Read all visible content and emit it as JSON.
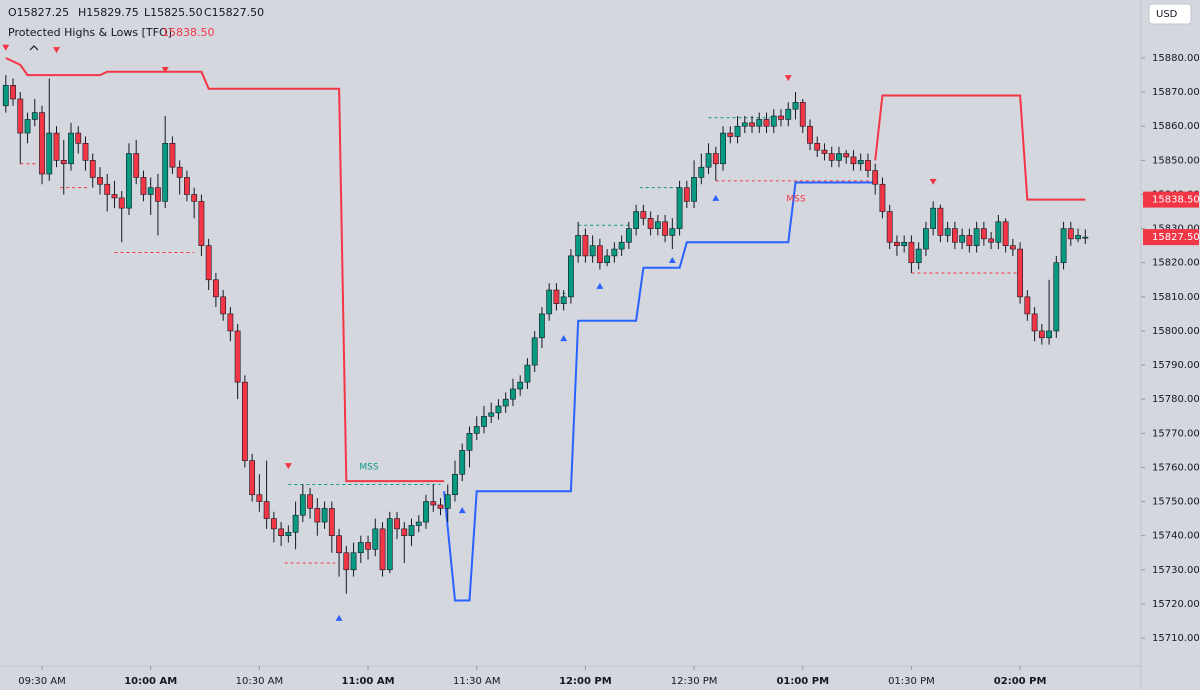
{
  "header": {
    "ohlc": [
      "O15827.25",
      "H15829.75",
      "L15825.50",
      "C15827.50"
    ],
    "indicator": "Protected Highs & Lows [TFO]",
    "indicator_value": "15838.50",
    "currency": "USD"
  },
  "chart_data": {
    "type": "candlestick",
    "up_color": "#089981",
    "down_color": "#f23645",
    "xlim": [
      558.4,
      873.1
    ],
    "ylim": [
      15702.1,
      15897
    ],
    "xticks": [
      {
        "value": 570,
        "label": "09:30 AM"
      },
      {
        "value": 600,
        "label": "10:00 AM"
      },
      {
        "value": 630,
        "label": "10:30 AM"
      },
      {
        "value": 660,
        "label": "11:00 AM"
      },
      {
        "value": 690,
        "label": "11:30 AM"
      },
      {
        "value": 720,
        "label": "12:00 PM"
      },
      {
        "value": 750,
        "label": "12:30 PM"
      },
      {
        "value": 780,
        "label": "01:00 PM"
      },
      {
        "value": 810,
        "label": "01:30 PM"
      },
      {
        "value": 840,
        "label": "02:00 PM"
      }
    ],
    "yticks": [
      {
        "value": 15710,
        "label": "15710.00"
      },
      {
        "value": 15720,
        "label": "15720.00"
      },
      {
        "value": 15730,
        "label": "15730.00"
      },
      {
        "value": 15740,
        "label": "15740.00"
      },
      {
        "value": 15750,
        "label": "15750.00"
      },
      {
        "value": 15760,
        "label": "15760.00"
      },
      {
        "value": 15770,
        "label": "15770.00"
      },
      {
        "value": 15780,
        "label": "15780.00"
      },
      {
        "value": 15790,
        "label": "15790.00"
      },
      {
        "value": 15800,
        "label": "15800.00"
      },
      {
        "value": 15810,
        "label": "15810.00"
      },
      {
        "value": 15820,
        "label": "15820.00"
      },
      {
        "value": 15830,
        "label": "15830.00"
      },
      {
        "value": 15840,
        "label": "15840.00"
      },
      {
        "value": 15850,
        "label": "15850.00"
      },
      {
        "value": 15860,
        "label": "15860.00"
      },
      {
        "value": 15870,
        "label": "15870.00"
      },
      {
        "value": 15880,
        "label": "15880.00"
      }
    ],
    "x": [
      560,
      562,
      564,
      566,
      568,
      570,
      572,
      574,
      576,
      578,
      580,
      582,
      584,
      586,
      588,
      590,
      592,
      594,
      596,
      598,
      600,
      602,
      604,
      606,
      608,
      610,
      612,
      614,
      616,
      618,
      620,
      622,
      624,
      626,
      628,
      630,
      632,
      634,
      636,
      638,
      640,
      642,
      644,
      646,
      648,
      650,
      652,
      654,
      656,
      658,
      660,
      662,
      664,
      666,
      668,
      670,
      672,
      674,
      676,
      678,
      680,
      682,
      684,
      686,
      688,
      690,
      692,
      694,
      696,
      698,
      700,
      702,
      704,
      706,
      708,
      710,
      712,
      714,
      716,
      718,
      720,
      722,
      724,
      726,
      728,
      730,
      732,
      734,
      736,
      738,
      740,
      742,
      744,
      746,
      748,
      750,
      752,
      754,
      756,
      758,
      760,
      762,
      764,
      766,
      768,
      770,
      772,
      774,
      776,
      778,
      780,
      782,
      784,
      786,
      788,
      790,
      792,
      794,
      796,
      798,
      800,
      802,
      804,
      806,
      808,
      810,
      812,
      814,
      816,
      818,
      820,
      822,
      824,
      826,
      828,
      830,
      832,
      834,
      836,
      838,
      840,
      842,
      844,
      846,
      848,
      850,
      852,
      854,
      856,
      858
    ],
    "open": [
      15866,
      15872,
      15868,
      15858,
      15862,
      15864,
      15846,
      15858,
      15850,
      15849,
      15858,
      15855,
      15850,
      15845,
      15843,
      15840,
      15839,
      15836,
      15852,
      15845,
      15840,
      15842,
      15838,
      15855,
      15848,
      15845,
      15840,
      15838,
      15825,
      15815,
      15810,
      15805,
      15800,
      15785,
      15762,
      15752,
      15750,
      15745,
      15742,
      15740,
      15741,
      15746,
      15752,
      15748,
      15744,
      15748,
      15740,
      15735,
      15730,
      15735,
      15738,
      15736,
      15742,
      15730,
      15745,
      15742,
      15740,
      15743,
      15744,
      15750,
      15749,
      15748,
      15752,
      15758,
      15765,
      15770,
      15772,
      15775,
      15776,
      15778,
      15780,
      15783,
      15785,
      15790,
      15798,
      15805,
      15812,
      15808,
      15810,
      15822,
      15828,
      15822,
      15825,
      15820,
      15822,
      15824,
      15826,
      15830,
      15835,
      15833,
      15830,
      15832,
      15828,
      15830,
      15842,
      15838,
      15845,
      15848,
      15852,
      15849,
      15858,
      15857,
      15860,
      15861,
      15860,
      15862,
      15860,
      15863,
      15862,
      15865,
      15867,
      15860,
      15855,
      15853,
      15852,
      15850,
      15852,
      15851,
      15849,
      15850,
      15847,
      15843,
      15835,
      15826,
      15825,
      15826,
      15820,
      15824,
      15830,
      15836,
      15828,
      15830,
      15826,
      15828,
      15825,
      15830,
      15827,
      15826,
      15832,
      15825,
      15824,
      15810,
      15805,
      15800,
      15798,
      15800,
      15820,
      15830,
      15827,
      15827.25
    ],
    "high": [
      15875,
      15874,
      15870,
      15864,
      15868,
      15866,
      15874,
      15860,
      15856,
      15861,
      15860,
      15857,
      15852,
      15848,
      15846,
      15844,
      15841,
      15855,
      15856,
      15847,
      15845,
      15846,
      15863,
      15857,
      15850,
      15847,
      15842,
      15840,
      15827,
      15817,
      15812,
      15807,
      15802,
      15787,
      15764,
      15758,
      15762,
      15747,
      15744,
      15743,
      15750,
      15755,
      15754,
      15751,
      15750,
      15750,
      15742,
      15737,
      15738,
      15740,
      15740,
      15745,
      15744,
      15747,
      15747,
      15744,
      15745,
      15746,
      15752,
      15755,
      15751,
      15755,
      15762,
      15767,
      15772,
      15775,
      15778,
      15779,
      15780,
      15782,
      15786,
      15787,
      15792,
      15800,
      15807,
      15814,
      15814,
      15812,
      15824,
      15832,
      15830,
      15828,
      15827,
      15824,
      15826,
      15828,
      15832,
      15837,
      15837,
      15835,
      15834,
      15834,
      15833,
      15844,
      15844,
      15850,
      15852,
      15855,
      15854,
      15860,
      15860,
      15863,
      15863,
      15863,
      15864,
      15864,
      15865,
      15865,
      15867,
      15870,
      15868,
      15862,
      15857,
      15855,
      15854,
      15854,
      15853,
      15853,
      15852,
      15852,
      15849,
      15845,
      15837,
      15828,
      15828,
      15828,
      15826,
      15832,
      15838,
      15837,
      15832,
      15832,
      15830,
      15830,
      15832,
      15832,
      15829,
      15834,
      15833,
      15827,
      15826,
      15812,
      15807,
      15802,
      15815,
      15822,
      15832,
      15832,
      15830,
      15829.75
    ],
    "low": [
      15864,
      15866,
      15849,
      15855,
      15860,
      15843,
      15844,
      15848,
      15840,
      15847,
      15852,
      15847,
      15842,
      15840,
      15835,
      15836,
      15826,
      15834,
      15843,
      15838,
      15834,
      15828,
      15836,
      15846,
      15840,
      15838,
      15833,
      15822,
      15812,
      15807,
      15803,
      15797,
      15780,
      15760,
      15750,
      15747,
      15742,
      15738,
      15737,
      15738,
      15736,
      15744,
      15745,
      15740,
      15742,
      15735,
      15728,
      15723,
      15728,
      15732,
      15733,
      15734,
      15728,
      15729,
      15739,
      15732,
      15737,
      15741,
      15742,
      15747,
      15746,
      15744,
      15750,
      15756,
      15760,
      15768,
      15770,
      15773,
      15774,
      15776,
      15778,
      15781,
      15783,
      15788,
      15795,
      15803,
      15806,
      15806,
      15808,
      15820,
      15820,
      15820,
      15818,
      15819,
      15820,
      15822,
      15824,
      15828,
      15831,
      15828,
      15828,
      15826,
      15824,
      15828,
      15836,
      15836,
      15843,
      15846,
      15844,
      15847,
      15855,
      15855,
      15858,
      15858,
      15858,
      15858,
      15858,
      15860,
      15860,
      15862,
      15858,
      15853,
      15851,
      15850,
      15848,
      15848,
      15849,
      15847,
      15847,
      15845,
      15840,
      15833,
      15824,
      15822,
      15823,
      15817,
      15818,
      15822,
      15828,
      15826,
      15826,
      15824,
      15824,
      15823,
      15823,
      15825,
      15824,
      15824,
      15823,
      15822,
      15808,
      15803,
      15797,
      15796,
      15796,
      15798,
      15818,
      15825,
      15826,
      15825.5
    ],
    "close": [
      15872,
      15868,
      15858,
      15862,
      15864,
      15846,
      15858,
      15850,
      15849,
      15858,
      15855,
      15850,
      15845,
      15843,
      15840,
      15839,
      15836,
      15852,
      15845,
      15840,
      15842,
      15838,
      15855,
      15848,
      15845,
      15840,
      15838,
      15825,
      15815,
      15810,
      15805,
      15800,
      15785,
      15762,
      15752,
      15750,
      15745,
      15742,
      15740,
      15741,
      15746,
      15752,
      15748,
      15744,
      15748,
      15740,
      15735,
      15730,
      15735,
      15738,
      15736,
      15742,
      15730,
      15745,
      15742,
      15740,
      15743,
      15744,
      15750,
      15749,
      15748,
      15752,
      15758,
      15765,
      15770,
      15772,
      15775,
      15776,
      15778,
      15780,
      15783,
      15785,
      15790,
      15798,
      15805,
      15812,
      15808,
      15810,
      15822,
      15828,
      15822,
      15825,
      15820,
      15822,
      15824,
      15826,
      15830,
      15835,
      15833,
      15830,
      15832,
      15828,
      15830,
      15842,
      15838,
      15845,
      15848,
      15852,
      15849,
      15858,
      15857,
      15860,
      15861,
      15860,
      15862,
      15860,
      15863,
      15862,
      15865,
      15867,
      15860,
      15855,
      15853,
      15852,
      15850,
      15852,
      15851,
      15849,
      15850,
      15847,
      15843,
      15835,
      15826,
      15825,
      15826,
      15820,
      15824,
      15830,
      15836,
      15828,
      15830,
      15826,
      15828,
      15825,
      15830,
      15827,
      15826,
      15832,
      15825,
      15824,
      15810,
      15805,
      15800,
      15798,
      15800,
      15820,
      15830,
      15827,
      15828,
      15827.5
    ],
    "lines": [
      {
        "color": "#f23645",
        "x": [
          560,
          564,
          566,
          586,
          588,
          614,
          616,
          652,
          654,
          681,
          690,
          800,
          802,
          840,
          842,
          858
        ],
        "values": [
          15880,
          15878,
          15875,
          15875,
          15876,
          15876,
          15871,
          15871,
          15756,
          15756,
          null,
          15850,
          15869,
          15869,
          15838.5,
          15838.5
        ]
      },
      {
        "color": "#2962ff",
        "x": [
          681,
          684,
          688,
          690,
          716,
          718,
          734,
          736,
          746,
          748,
          776,
          778,
          800
        ],
        "values": [
          15753,
          15721,
          15721,
          15753,
          15753,
          15803,
          15803,
          15818.5,
          15818.5,
          15826,
          15826,
          15843.5,
          15843.5
        ]
      }
    ],
    "levels": [
      {
        "x": [
          564,
          569
        ],
        "value": 15849,
        "color": "#f23645"
      },
      {
        "x": [
          575,
          583
        ],
        "value": 15842,
        "color": "#f23645"
      },
      {
        "x": [
          590,
          612
        ],
        "value": 15823,
        "color": "#f23645"
      },
      {
        "x": [
          637,
          651
        ],
        "value": 15732,
        "color": "#f23645"
      },
      {
        "x": [
          756,
          799
        ],
        "value": 15844,
        "color": "#f23645"
      },
      {
        "x": [
          810,
          840
        ],
        "value": 15817,
        "color": "#f23645"
      },
      {
        "x": [
          638,
          680
        ],
        "value": 15755,
        "color": "#089981"
      },
      {
        "x": [
          712,
          717
        ],
        "value": 15811,
        "color": "#089981"
      },
      {
        "x": [
          718,
          732
        ],
        "value": 15831,
        "color": "#089981"
      },
      {
        "x": [
          735,
          746
        ],
        "value": 15842,
        "color": "#089981"
      },
      {
        "x": [
          754,
          771
        ],
        "value": 15862.5,
        "color": "#089981"
      }
    ],
    "markers": [
      {
        "x": 560,
        "value": 15883,
        "direction": "down",
        "color": "#f23645"
      },
      {
        "x": 574,
        "value": 15882.3,
        "direction": "down",
        "color": "#f23645"
      },
      {
        "x": 604,
        "value": 15876.5,
        "direction": "down",
        "color": "#f23645"
      },
      {
        "x": 638,
        "value": 15760.4,
        "direction": "down",
        "color": "#f23645"
      },
      {
        "x": 776,
        "value": 15874.1,
        "direction": "down",
        "color": "#f23645"
      },
      {
        "x": 816,
        "value": 15843.7,
        "direction": "down",
        "color": "#f23645"
      },
      {
        "x": 652,
        "value": 15715.9,
        "direction": "up",
        "color": "#2962ff"
      },
      {
        "x": 686,
        "value": 15747.5,
        "direction": "up",
        "color": "#2962ff"
      },
      {
        "x": 714,
        "value": 15797.9,
        "direction": "up",
        "color": "#2962ff"
      },
      {
        "x": 724,
        "value": 15813.2,
        "direction": "up",
        "color": "#2962ff"
      },
      {
        "x": 744,
        "value": 15820.8,
        "direction": "up",
        "color": "#2962ff"
      },
      {
        "x": 756,
        "value": 15839,
        "direction": "up",
        "color": "#2962ff"
      }
    ],
    "annotations": [
      {
        "text": "MSS",
        "color": "#089981"
      },
      {
        "text": "MSS",
        "color": "#f23645"
      }
    ],
    "price_tags": [
      {
        "label": "15838.50",
        "value": 15838.5,
        "color": "#f23645"
      },
      {
        "label": "15827.50",
        "value": 15827.5,
        "color": "#f23645"
      }
    ]
  }
}
